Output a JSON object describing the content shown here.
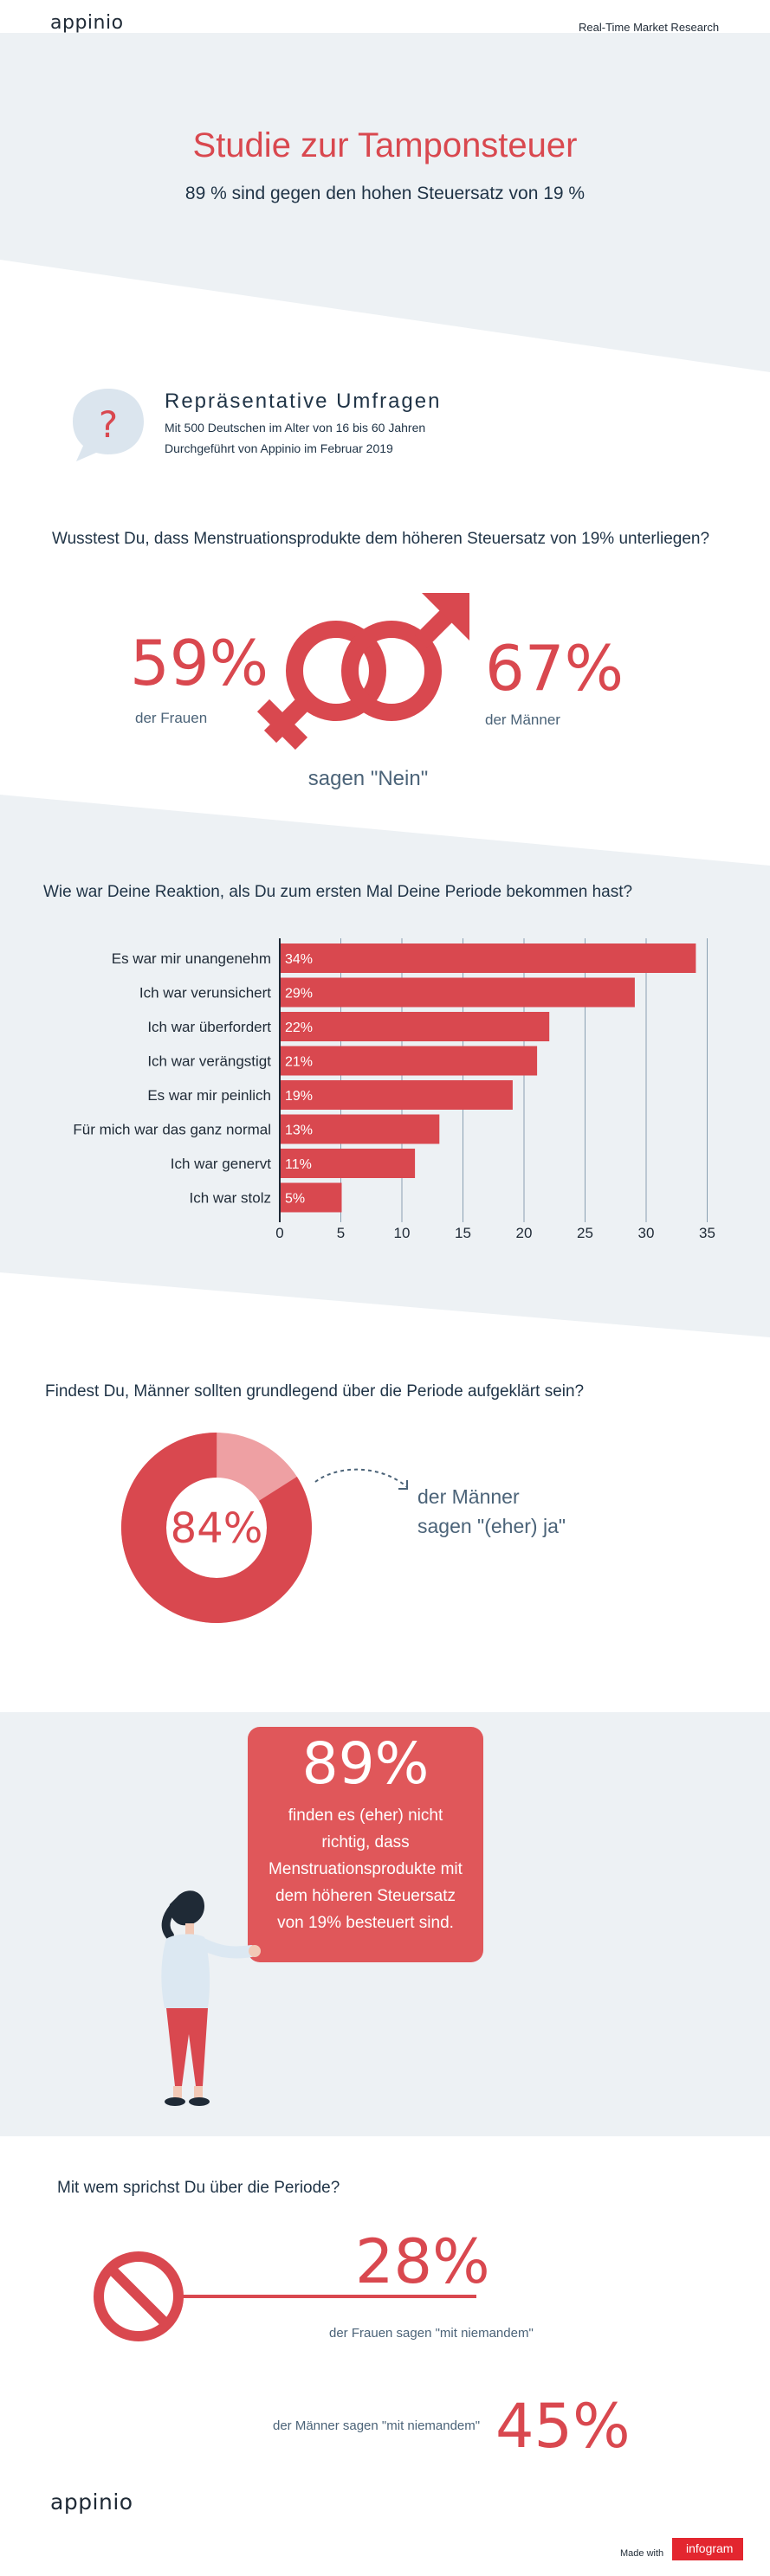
{
  "header": {
    "logo": "appinio",
    "right": "Real-Time Market Research"
  },
  "hero": {
    "title": "Studie zur Tamponsteuer",
    "subtitle": "89 % sind gegen den hohen Steuersatz von 19 %"
  },
  "survey": {
    "icon": "question-bubble-icon",
    "heading": "Repräsentative Umfragen",
    "line1": "Mit 500 Deutschen im Alter von 16 bis 60 Jahren",
    "line2": "Durchgeführt von Appinio im Februar 2019"
  },
  "q1": {
    "question": "Wusstest Du, dass Menstruationsprodukte dem höheren Steuersatz von 19% unterliegen?",
    "women_pct": "59%",
    "women_label": "der Frauen",
    "men_pct": "67%",
    "men_label": "der Männer",
    "answer": "sagen \"Nein\""
  },
  "q2": {
    "question": "Wie war Deine Reaktion, als Du zum ersten Mal Deine Periode bekommen hast?"
  },
  "chart_data": {
    "type": "bar",
    "orientation": "horizontal",
    "categories": [
      "Es war mir unangenehm",
      "Ich war verunsichert",
      "Ich war überfordert",
      "Ich war verängstigt",
      "Es war mir peinlich",
      "Für mich war das ganz normal",
      "Ich war genervt",
      "Ich war stolz"
    ],
    "values": [
      34,
      29,
      22,
      21,
      19,
      13,
      11,
      5
    ],
    "value_labels": [
      "34%",
      "29%",
      "22%",
      "21%",
      "19%",
      "13%",
      "11%",
      "5%"
    ],
    "xlim": [
      0,
      35
    ],
    "ticks": [
      "0",
      "5",
      "10",
      "15",
      "20",
      "25",
      "30",
      "35"
    ],
    "grid": true,
    "color": "#d9484f"
  },
  "q3": {
    "question": "Findest Du, Männer sollten grundlegend über die Periode aufgeklärt sein?",
    "pct": "84%",
    "value": 84,
    "label1": "der Männer",
    "label2": "sagen \"(eher) ja\""
  },
  "card": {
    "pct": "89%",
    "text": "finden es (eher) nicht richtig, dass Menstruationsprodukte mit dem höheren Steuersatz von 19% besteuert sind."
  },
  "q4": {
    "question": "Mit wem sprichst Du über die Periode?",
    "women_pct": "28%",
    "women_label": "der Frauen sagen \"mit niemandem\"",
    "men_pct": "45%",
    "men_label": "der Männer sagen \"mit niemandem\""
  },
  "footer": {
    "logo": "appinio",
    "made_with": "Made with",
    "brand": "infogram"
  },
  "colors": {
    "accent": "#d9484f",
    "band": "#edf1f4",
    "navy": "#1f3346"
  }
}
